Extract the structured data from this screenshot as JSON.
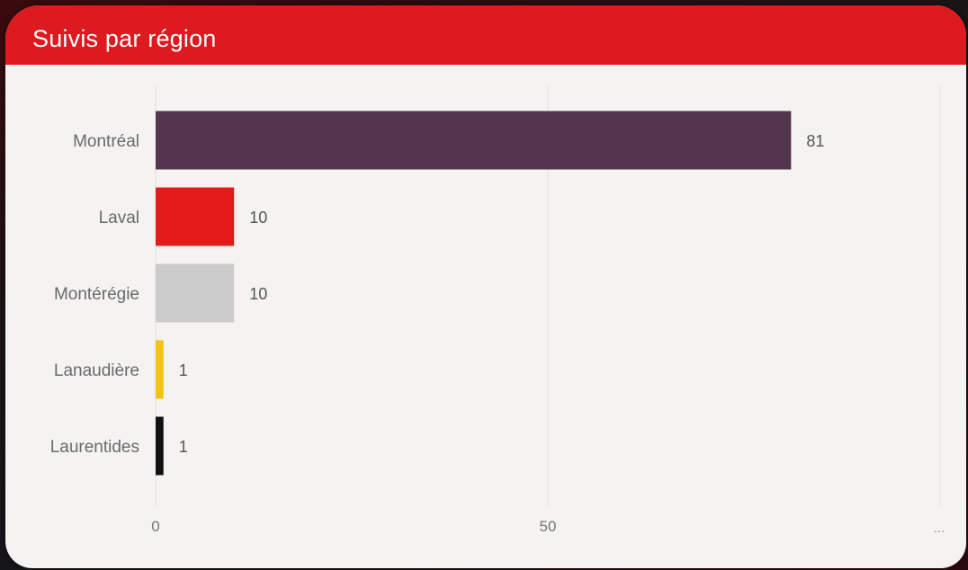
{
  "card": {
    "title": "Suivis par région",
    "header_color": "#dc1a1f"
  },
  "chart_data": {
    "type": "bar",
    "orientation": "horizontal",
    "title": "Suivis par région",
    "xlabel": "",
    "ylabel": "",
    "xlim": [
      0,
      100
    ],
    "x_ticks": [
      {
        "value": 0,
        "label": "0"
      },
      {
        "value": 50,
        "label": "50"
      },
      {
        "value": 100,
        "label": "..."
      }
    ],
    "grid": true,
    "categories": [
      "Montréal",
      "Laval",
      "Montérégie",
      "Lanaudière",
      "Laurentides"
    ],
    "values": [
      81,
      10,
      10,
      1,
      1
    ],
    "value_labels": [
      "81",
      "10",
      "10",
      "1",
      "1"
    ],
    "colors": [
      "#55344e",
      "#e31b1b",
      "#cbcbcb",
      "#f1c40f",
      "#111111"
    ]
  }
}
